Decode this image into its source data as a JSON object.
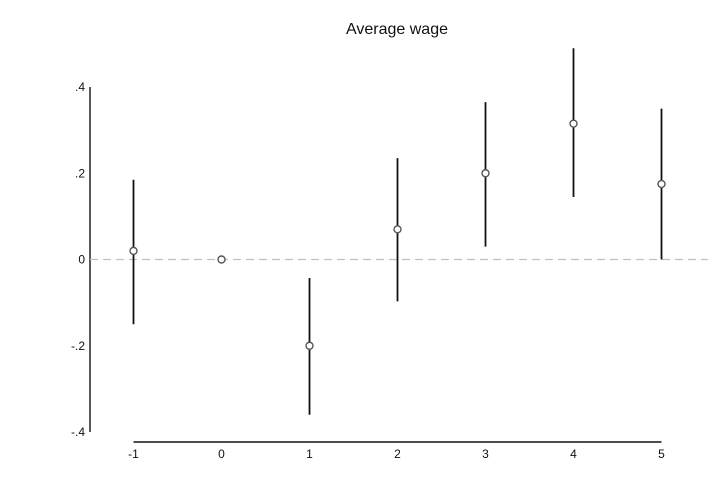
{
  "chart_data": {
    "type": "scatter",
    "title": "Average wage",
    "xlabel": "",
    "ylabel": "",
    "x": [
      -1,
      0,
      1,
      2,
      3,
      4,
      5
    ],
    "x_tick_labels": [
      "-1",
      "0",
      "1",
      "2",
      "3",
      "4",
      "5"
    ],
    "y_ticks": [
      0.4,
      0.2,
      0,
      -0.2,
      -0.4
    ],
    "y_tick_labels": [
      ".4",
      ".2",
      "0",
      "-.2",
      "-.4"
    ],
    "ylim": [
      -0.4,
      0.4
    ],
    "series": [
      {
        "estimate": [
          0.02,
          0.0,
          -0.2,
          0.07,
          0.2,
          0.315,
          0.175
        ],
        "ci_low": [
          -0.15,
          0.0,
          -0.36,
          -0.097,
          0.03,
          0.145,
          0.0
        ],
        "ci_high": [
          0.185,
          0.0,
          -0.043,
          0.235,
          0.365,
          0.49,
          0.35
        ]
      }
    ],
    "reference_line": {
      "y": 0,
      "style": "dashed"
    },
    "grid": false,
    "legend": "none",
    "colors": {
      "marker": "#555555",
      "error_bar": "#111111",
      "axis": "#111111",
      "reference_line": "#c0c0c0",
      "text": "#111111"
    }
  }
}
